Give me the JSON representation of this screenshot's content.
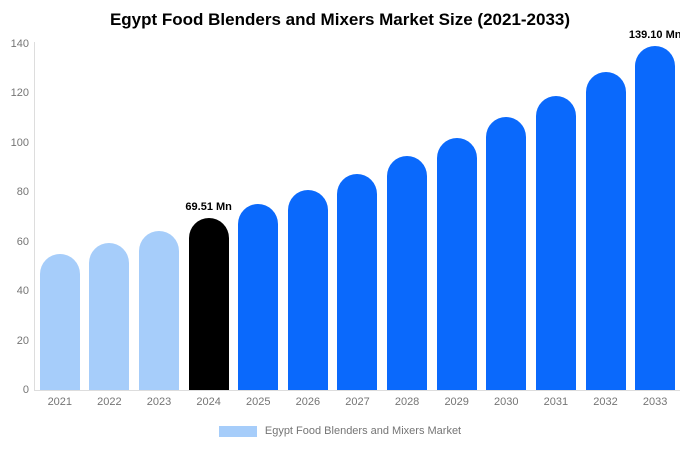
{
  "chart_data": {
    "type": "bar",
    "title": "Egypt Food Blenders and Mixers Market Size (2021-2033)",
    "xlabel": "",
    "ylabel": "",
    "categories": [
      "2021",
      "2022",
      "2023",
      "2024",
      "2025",
      "2026",
      "2027",
      "2028",
      "2029",
      "2030",
      "2031",
      "2032",
      "2033"
    ],
    "values": [
      55.17,
      59.59,
      64.36,
      69.51,
      75.08,
      81.09,
      87.58,
      94.59,
      102.16,
      110.34,
      119.18,
      128.72,
      139.1
    ],
    "bar_colors": [
      "#a6cdfa",
      "#a6cdfa",
      "#a6cdfa",
      "#000000",
      "#0a69fc",
      "#0a69fc",
      "#0a69fc",
      "#0a69fc",
      "#0a69fc",
      "#0a69fc",
      "#0a69fc",
      "#0a69fc",
      "#0a69fc"
    ],
    "ylim": [
      0,
      140
    ],
    "yticks": [
      0,
      20,
      40,
      60,
      80,
      100,
      120,
      140
    ],
    "grid": false,
    "axis_color": "#dddddd",
    "tick_label_color": "#757575",
    "annotations": [
      {
        "category": "2024",
        "text": "69.51 Mn"
      },
      {
        "category": "2033",
        "text": "139.10 Mn"
      }
    ],
    "legend": {
      "position": "bottom",
      "entries": [
        {
          "label": "Egypt Food Blenders and Mixers Market",
          "swatch_color": "#a6cdfa"
        }
      ]
    }
  }
}
